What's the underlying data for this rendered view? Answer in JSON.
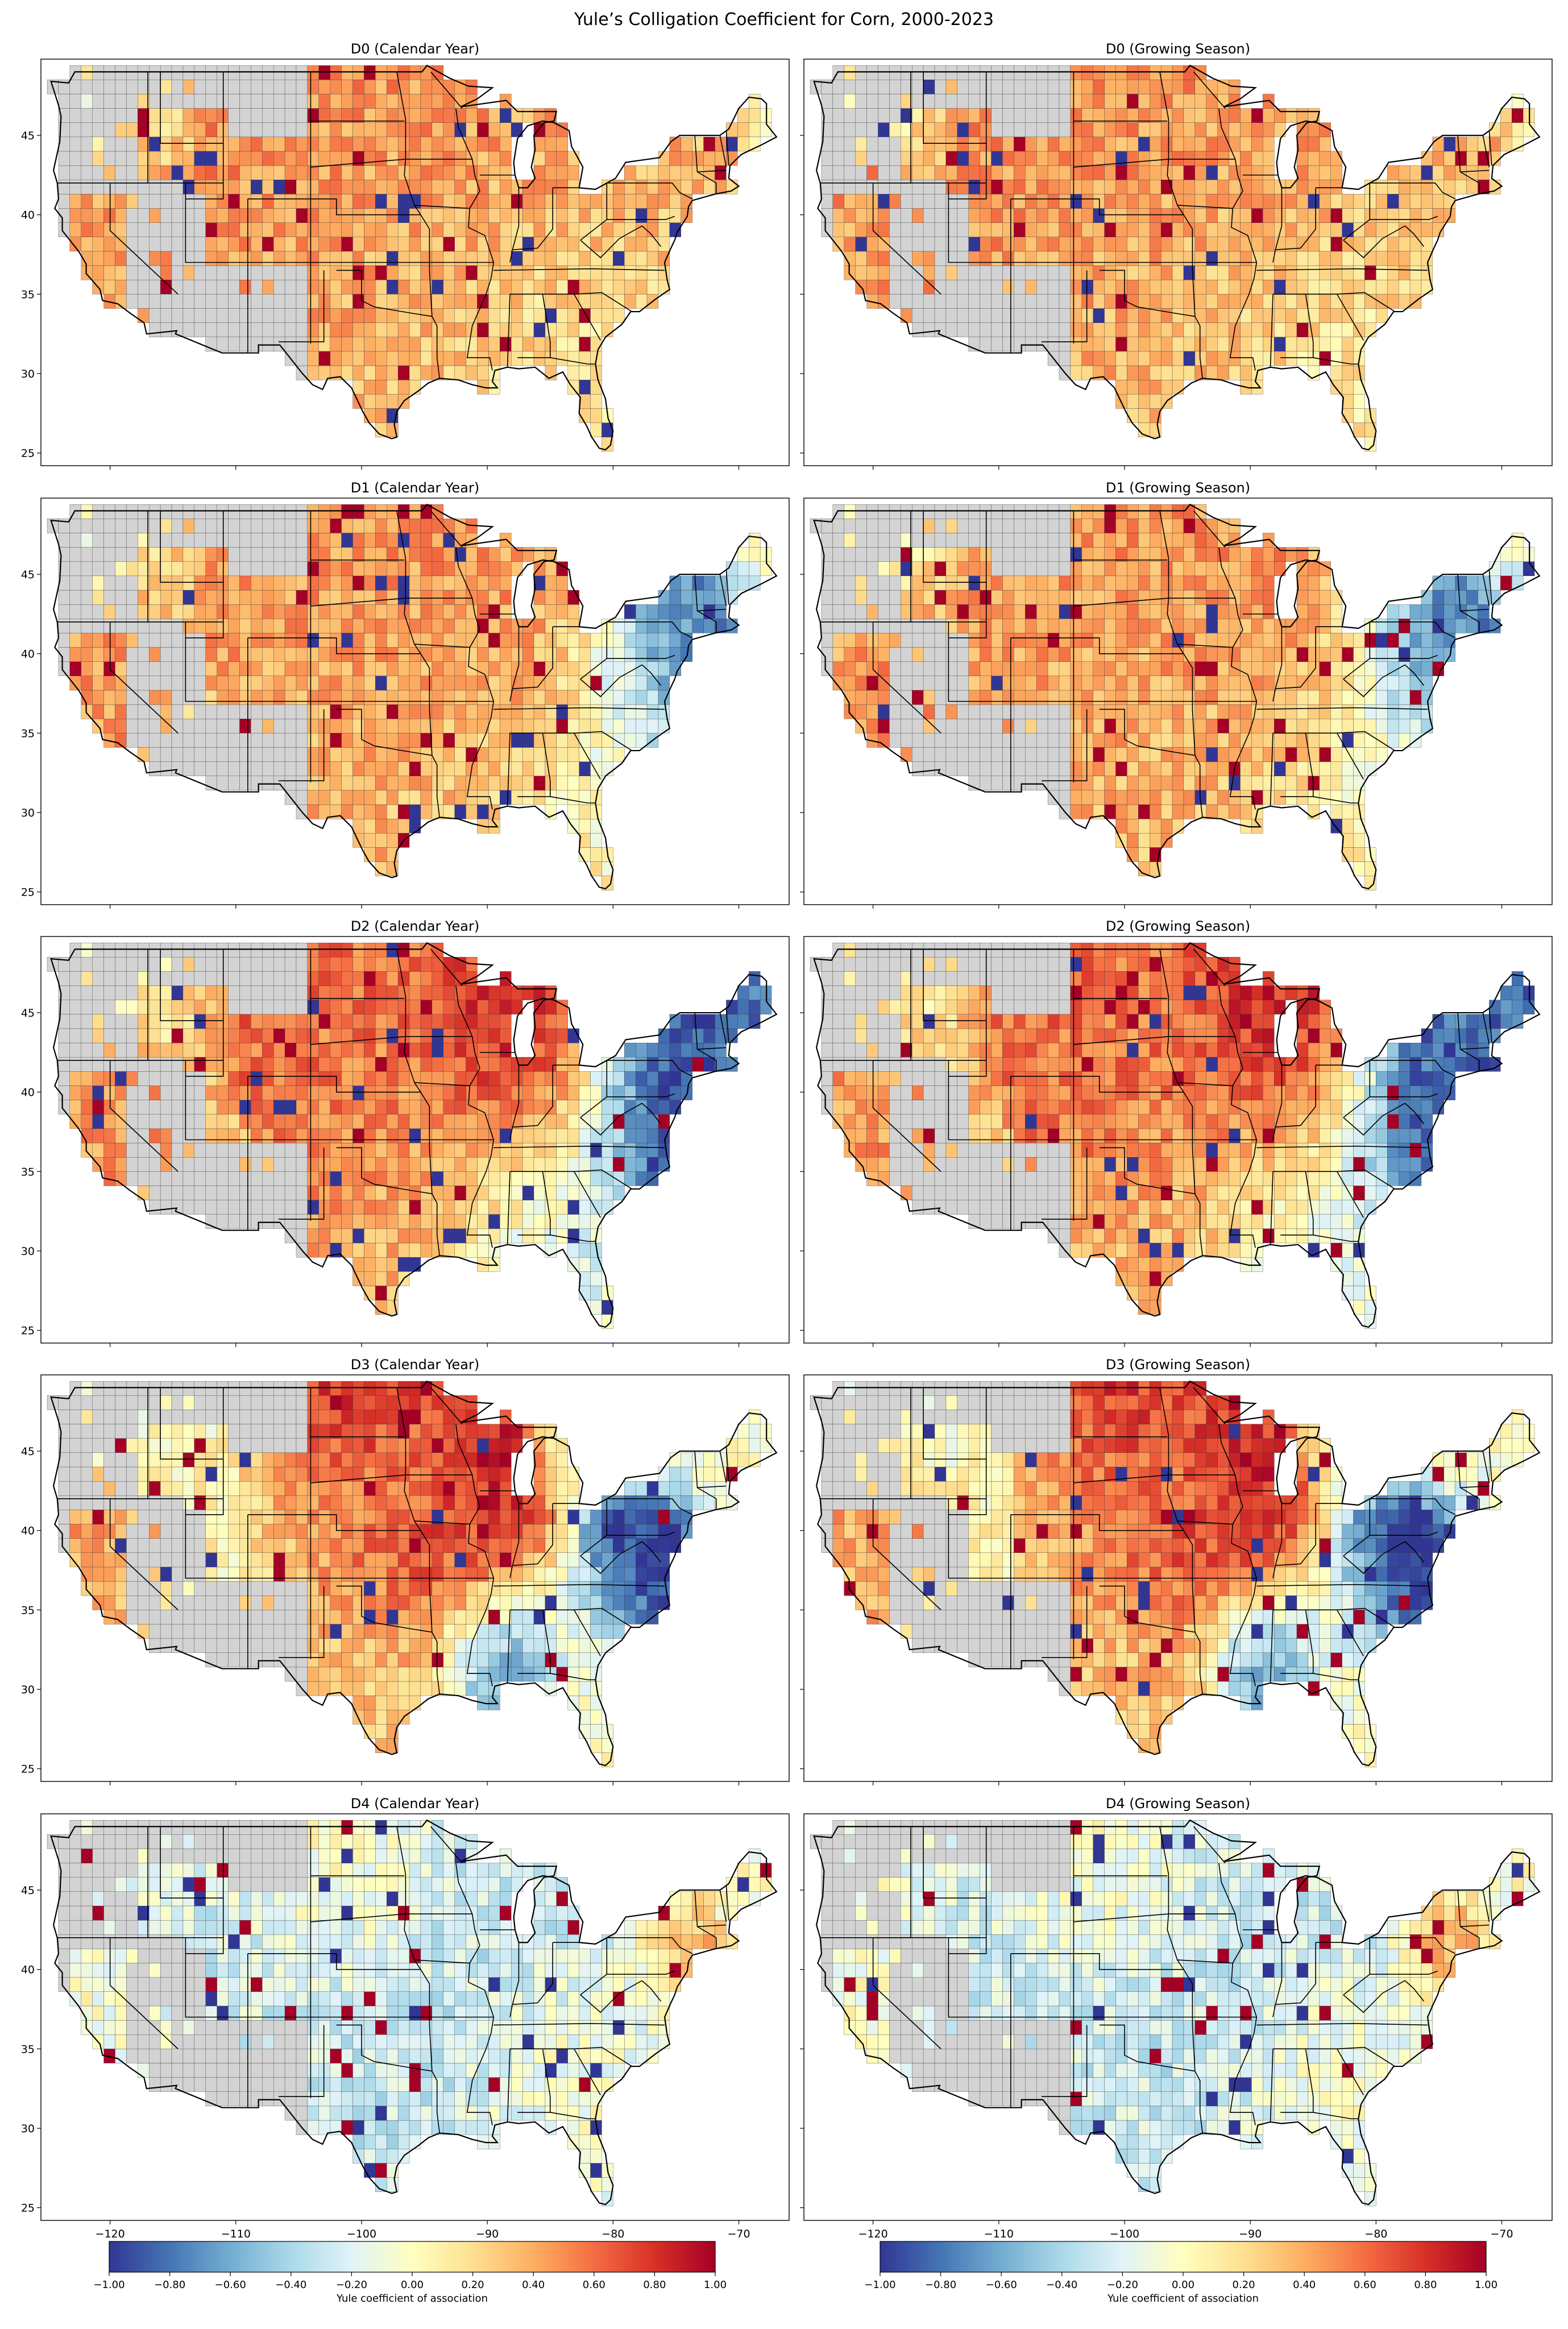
{
  "figure": {
    "title": "Yule’s Colligation Coefficient for Corn, 2000-2023",
    "colors": {
      "no_data": "#d3d3d3",
      "border": "#000000",
      "scale": [
        "#313695",
        "#4575b4",
        "#74add1",
        "#abd9e9",
        "#e0f3f8",
        "#ffffbf",
        "#fee090",
        "#fdae61",
        "#f46d43",
        "#d73027",
        "#a50026"
      ]
    }
  },
  "map_axes": {
    "lat_ticks": [
      "25",
      "30",
      "35",
      "40",
      "45"
    ],
    "lat_values": [
      25,
      30,
      35,
      40,
      45
    ],
    "lon_ticks": [
      "−120",
      "−110",
      "−100",
      "−90",
      "−80",
      "−70"
    ],
    "lon_values": [
      -120,
      -110,
      -100,
      -90,
      -80,
      -70
    ],
    "lon_range": [
      -125.5,
      -66
    ],
    "lat_range": [
      24.2,
      49.8
    ]
  },
  "panels": [
    {
      "title": "D0 (Calendar Year)",
      "pattern": "d0"
    },
    {
      "title": "D0 (Growing Season)",
      "pattern": "d0"
    },
    {
      "title": "D1 (Calendar Year)",
      "pattern": "d1"
    },
    {
      "title": "D1 (Growing Season)",
      "pattern": "d1"
    },
    {
      "title": "D2 (Calendar Year)",
      "pattern": "d2"
    },
    {
      "title": "D2 (Growing Season)",
      "pattern": "d2"
    },
    {
      "title": "D3 (Calendar Year)",
      "pattern": "d3"
    },
    {
      "title": "D3 (Growing Season)",
      "pattern": "d3"
    },
    {
      "title": "D4 (Calendar Year)",
      "pattern": "d4"
    },
    {
      "title": "D4 (Growing Season)",
      "pattern": "d4"
    }
  ],
  "colorbars": [
    {
      "label": "Yule coefficient of association",
      "ticks": [
        "−1.00",
        "−0.80",
        "−0.60",
        "−0.40",
        "−0.20",
        "0.00",
        "0.20",
        "0.40",
        "0.60",
        "0.80",
        "1.00"
      ],
      "range": [
        -1,
        1
      ]
    },
    {
      "label": "Yule coefficient of association",
      "ticks": [
        "−1.00",
        "−0.80",
        "−0.60",
        "−0.40",
        "−0.20",
        "0.00",
        "0.20",
        "0.40",
        "0.60",
        "0.80",
        "1.00"
      ],
      "range": [
        -1,
        1
      ]
    }
  ]
}
